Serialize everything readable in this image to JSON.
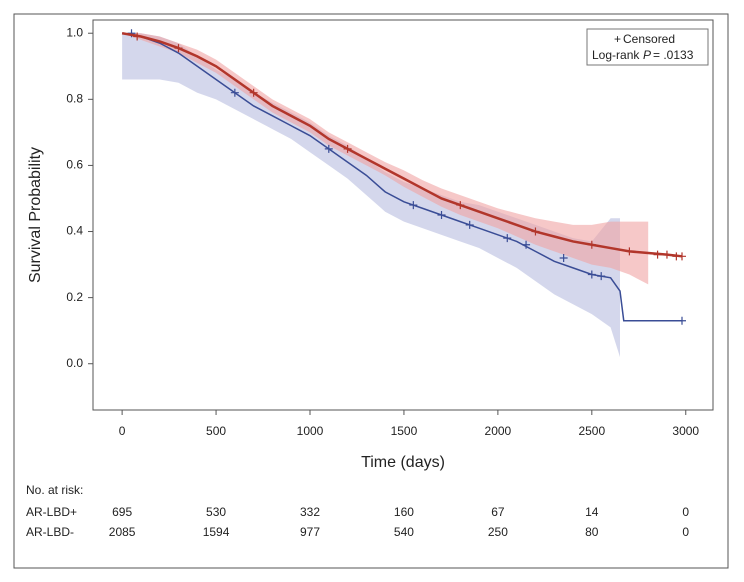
{
  "chart_data": {
    "type": "survival",
    "x_label": "Time (days)",
    "y_label": "Survival Probability",
    "xlim": [
      -155,
      3145
    ],
    "ylim": [
      -0.14,
      1.04
    ],
    "xticks": [
      0,
      500,
      1000,
      1500,
      2000,
      2500,
      3000
    ],
    "yticks": [
      {
        "value": 0,
        "label": "0.0"
      },
      0.2,
      0.4,
      0.6,
      0.8,
      {
        "value": 1,
        "label": "1.0"
      }
    ],
    "annotation": {
      "symbol": "+",
      "label": "Censored",
      "test": "Log-rank",
      "stat": "P",
      "pvalue": "= .0133"
    },
    "risk_title": "No. at risk:",
    "series": [
      {
        "name": "AR-LBD+",
        "color": "#3a4d96",
        "band_color": "#b7bde0",
        "x": [
          0,
          100,
          200,
          300,
          400,
          500,
          600,
          700,
          800,
          900,
          1000,
          1100,
          1200,
          1300,
          1400,
          1500,
          1600,
          1700,
          1800,
          1900,
          2000,
          2100,
          2200,
          2300,
          2400,
          2500,
          2600,
          2650,
          2670,
          2980
        ],
        "values": [
          1.0,
          0.99,
          0.97,
          0.94,
          0.9,
          0.86,
          0.82,
          0.78,
          0.75,
          0.72,
          0.69,
          0.65,
          0.61,
          0.57,
          0.52,
          0.49,
          0.47,
          0.45,
          0.43,
          0.41,
          0.39,
          0.37,
          0.34,
          0.31,
          0.29,
          0.27,
          0.26,
          0.22,
          0.13,
          0.13
        ],
        "ci_upper": [
          1.0,
          1.0,
          0.99,
          0.97,
          0.93,
          0.89,
          0.86,
          0.82,
          0.79,
          0.76,
          0.73,
          0.69,
          0.66,
          0.62,
          0.58,
          0.55,
          0.53,
          0.51,
          0.49,
          0.48,
          0.46,
          0.44,
          0.42,
          0.4,
          0.38,
          0.37,
          0.44,
          0.44,
          null,
          null
        ],
        "ci_lower": [
          0.86,
          0.86,
          0.86,
          0.85,
          0.82,
          0.8,
          0.77,
          0.74,
          0.71,
          0.68,
          0.64,
          0.6,
          0.56,
          0.51,
          0.46,
          0.43,
          0.41,
          0.39,
          0.37,
          0.35,
          0.32,
          0.29,
          0.25,
          0.21,
          0.18,
          0.15,
          0.11,
          0.02,
          null,
          null
        ],
        "censored_x": [
          50,
          600,
          1100,
          1550,
          1700,
          1850,
          2050,
          2150,
          2350,
          2500,
          2550,
          2980
        ],
        "censored_y": [
          1.0,
          0.82,
          0.65,
          0.48,
          0.45,
          0.42,
          0.38,
          0.36,
          0.32,
          0.27,
          0.265,
          0.13
        ],
        "at_risk": [
          695,
          530,
          332,
          160,
          67,
          14,
          0
        ]
      },
      {
        "name": "AR-LBD-",
        "color": "#b2362b",
        "band_color": "#f0a4a4",
        "x": [
          0,
          100,
          200,
          300,
          400,
          500,
          600,
          700,
          800,
          900,
          1000,
          1100,
          1200,
          1300,
          1400,
          1500,
          1600,
          1700,
          1800,
          1900,
          2000,
          2100,
          2200,
          2300,
          2400,
          2500,
          2600,
          2700,
          2800,
          2900,
          2980
        ],
        "values": [
          1.0,
          0.99,
          0.975,
          0.955,
          0.93,
          0.9,
          0.86,
          0.82,
          0.78,
          0.75,
          0.72,
          0.68,
          0.65,
          0.62,
          0.59,
          0.56,
          0.53,
          0.5,
          0.48,
          0.46,
          0.44,
          0.42,
          0.4,
          0.385,
          0.37,
          0.36,
          0.35,
          0.34,
          0.335,
          0.33,
          0.325
        ],
        "ci_upper": [
          1.0,
          1.0,
          0.99,
          0.97,
          0.95,
          0.92,
          0.88,
          0.84,
          0.8,
          0.77,
          0.74,
          0.7,
          0.67,
          0.64,
          0.61,
          0.585,
          0.555,
          0.53,
          0.51,
          0.49,
          0.47,
          0.455,
          0.44,
          0.43,
          0.42,
          0.42,
          0.43,
          0.43,
          0.43,
          null,
          null
        ],
        "ci_lower": [
          1.0,
          0.98,
          0.96,
          0.94,
          0.91,
          0.88,
          0.84,
          0.8,
          0.76,
          0.73,
          0.7,
          0.66,
          0.63,
          0.6,
          0.57,
          0.535,
          0.505,
          0.475,
          0.45,
          0.43,
          0.41,
          0.385,
          0.36,
          0.34,
          0.32,
          0.3,
          0.29,
          0.27,
          0.24,
          null,
          null
        ],
        "censored_x": [
          80,
          300,
          700,
          1200,
          1800,
          2200,
          2500,
          2700,
          2850,
          2900,
          2950,
          2980
        ],
        "censored_y": [
          0.99,
          0.955,
          0.82,
          0.65,
          0.48,
          0.4,
          0.36,
          0.34,
          0.33,
          0.33,
          0.325,
          0.325
        ],
        "at_risk": [
          2085,
          1594,
          977,
          540,
          250,
          80,
          0
        ]
      }
    ]
  }
}
